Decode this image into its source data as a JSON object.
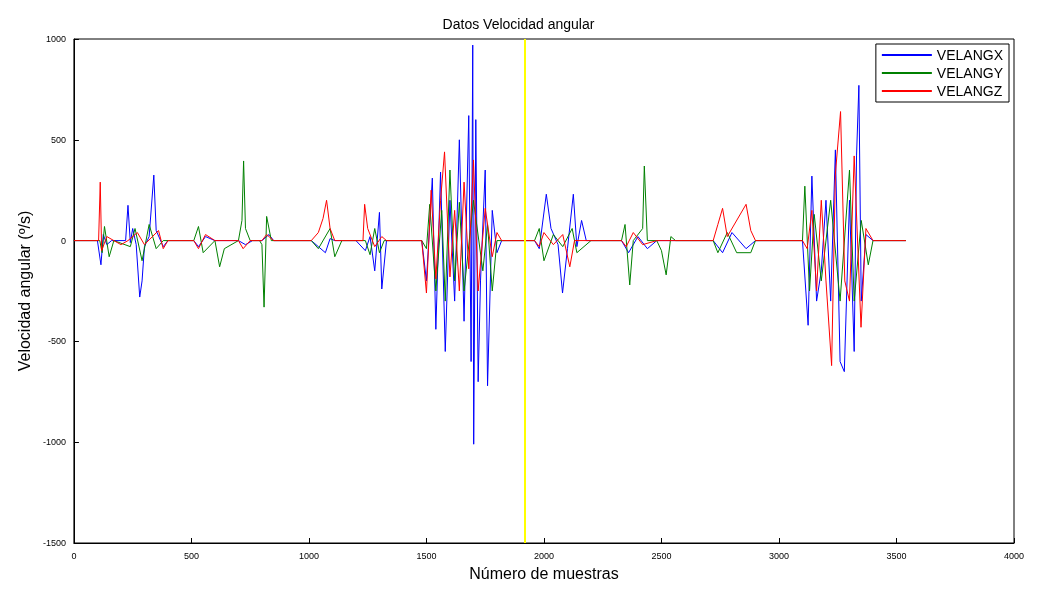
{
  "chart_data": {
    "type": "line",
    "title": "Datos Velocidad angular",
    "xlabel": "Número de muestras",
    "ylabel": "Velocidad angular (º/s)",
    "xlim": [
      0,
      4000
    ],
    "xticks": [
      0,
      500,
      1000,
      1500,
      2000,
      2500,
      3000,
      3500,
      4000
    ],
    "ylim": [
      -1500,
      1000
    ],
    "yticks": [
      -1500,
      -1000,
      -500,
      0,
      500,
      1000
    ],
    "grid": false,
    "legend": "top right",
    "marker": "none",
    "line_style": "solid",
    "ref_lines": [
      {
        "axis": "x",
        "value": 1920,
        "label": null,
        "color": "#ffff00"
      }
    ],
    "series": [
      {
        "name": "VELANGX",
        "color": "#0000ff",
        "x": [
          0,
          100,
          115,
          125,
          140,
          160,
          220,
          230,
          240,
          250,
          265,
          280,
          290,
          300,
          320,
          340,
          350,
          380,
          400,
          510,
          530,
          560,
          600,
          700,
          730,
          760,
          800,
          830,
          850,
          1010,
          1040,
          1070,
          1090,
          1110,
          1200,
          1240,
          1260,
          1280,
          1300,
          1310,
          1330,
          1480,
          1500,
          1525,
          1540,
          1560,
          1580,
          1600,
          1620,
          1640,
          1660,
          1680,
          1690,
          1697,
          1701,
          1710,
          1720,
          1730,
          1750,
          1760,
          1780,
          1800,
          1820,
          1960,
          1980,
          2010,
          2030,
          2060,
          2079,
          2100,
          2125,
          2140,
          2160,
          2180,
          2330,
          2360,
          2400,
          2440,
          2480,
          2720,
          2760,
          2800,
          2860,
          2900,
          3100,
          3124,
          3140,
          3160,
          3180,
          3200,
          3220,
          3240,
          3260,
          3278,
          3300,
          3320,
          3330,
          3340,
          3350,
          3370,
          3400,
          3540
        ],
        "values": [
          0,
          0,
          -120,
          30,
          -20,
          0,
          0,
          175,
          -10,
          60,
          -20,
          -280,
          -200,
          -30,
          20,
          325,
          50,
          -30,
          0,
          0,
          -30,
          20,
          0,
          0,
          -20,
          0,
          0,
          30,
          0,
          0,
          -30,
          -60,
          10,
          0,
          0,
          -50,
          20,
          -150,
          140,
          -240,
          0,
          0,
          -200,
          310,
          -440,
          340,
          -550,
          200,
          -300,
          500,
          -400,
          620,
          -600,
          970,
          -1010,
          600,
          -700,
          -200,
          350,
          -720,
          150,
          -60,
          0,
          0,
          -40,
          230,
          60,
          -20,
          -260,
          -40,
          230,
          -30,
          100,
          0,
          0,
          -60,
          20,
          -40,
          0,
          0,
          -60,
          40,
          -40,
          0,
          0,
          -420,
          320,
          -300,
          -150,
          200,
          -300,
          450,
          -600,
          -650,
          200,
          -550,
          420,
          770,
          -300,
          30,
          0,
          0
        ]
      },
      {
        "name": "VELANGY",
        "color": "#008000",
        "x": [
          0,
          110,
          120,
          130,
          150,
          170,
          240,
          260,
          290,
          320,
          350,
          380,
          510,
          530,
          550,
          600,
          620,
          640,
          700,
          715,
          722,
          730,
          750,
          790,
          800,
          809,
          820,
          840,
          1010,
          1040,
          1090,
          1110,
          1140,
          1240,
          1260,
          1280,
          1300,
          1320,
          1480,
          1500,
          1514,
          1540,
          1565,
          1580,
          1600,
          1620,
          1640,
          1660,
          1700,
          1740,
          1760,
          1780,
          1800,
          1960,
          1980,
          2000,
          2040,
          2080,
          2120,
          2140,
          2200,
          2330,
          2345,
          2365,
          2380,
          2420,
          2427,
          2440,
          2480,
          2500,
          2520,
          2540,
          2560,
          2720,
          2740,
          2780,
          2820,
          2880,
          2900,
          3100,
          3110,
          3130,
          3150,
          3180,
          3220,
          3260,
          3300,
          3320,
          3350,
          3380,
          3400,
          3540
        ],
        "values": [
          0,
          0,
          -60,
          70,
          -80,
          0,
          -30,
          60,
          -100,
          80,
          -40,
          0,
          0,
          70,
          -60,
          0,
          -130,
          -40,
          0,
          100,
          395,
          60,
          0,
          0,
          -20,
          -330,
          120,
          0,
          0,
          -40,
          60,
          -80,
          0,
          0,
          -70,
          60,
          -60,
          0,
          0,
          -40,
          180,
          -250,
          150,
          -300,
          350,
          -200,
          190,
          -250,
          200,
          -150,
          80,
          -250,
          0,
          0,
          60,
          -100,
          30,
          -30,
          60,
          -60,
          0,
          0,
          80,
          -220,
          0,
          60,
          370,
          0,
          0,
          -50,
          -170,
          20,
          0,
          0,
          -60,
          40,
          -60,
          -60,
          0,
          0,
          270,
          -250,
          130,
          -200,
          200,
          -300,
          350,
          -300,
          100,
          -120,
          0,
          0
        ]
      },
      {
        "name": "VELANGZ",
        "color": "#ff0000",
        "x": [
          0,
          105,
          112,
          118,
          140,
          200,
          230,
          270,
          300,
          360,
          380,
          400,
          510,
          530,
          560,
          600,
          700,
          720,
          750,
          800,
          820,
          850,
          1010,
          1040,
          1060,
          1075,
          1090,
          1110,
          1230,
          1237,
          1250,
          1280,
          1310,
          1330,
          1480,
          1500,
          1520,
          1540,
          1560,
          1577,
          1600,
          1620,
          1640,
          1660,
          1680,
          1700,
          1720,
          1750,
          1780,
          1800,
          1820,
          1960,
          1980,
          2000,
          2040,
          2080,
          2110,
          2130,
          2330,
          2350,
          2380,
          2420,
          2480,
          2720,
          2740,
          2760,
          2780,
          2860,
          2880,
          2900,
          3100,
          3120,
          3140,
          3160,
          3180,
          3200,
          3224,
          3240,
          3262,
          3280,
          3300,
          3320,
          3349,
          3370,
          3400,
          3540
        ],
        "values": [
          0,
          0,
          290,
          -50,
          20,
          -20,
          0,
          40,
          -20,
          50,
          -40,
          0,
          0,
          -40,
          30,
          0,
          0,
          -40,
          0,
          0,
          30,
          0,
          0,
          40,
          110,
          200,
          60,
          0,
          0,
          180,
          60,
          -30,
          20,
          0,
          0,
          -260,
          250,
          -190,
          200,
          440,
          -180,
          150,
          -250,
          290,
          -140,
          400,
          -250,
          160,
          -80,
          40,
          0,
          0,
          -30,
          40,
          -20,
          30,
          -130,
          0,
          0,
          -30,
          40,
          -20,
          0,
          0,
          80,
          160,
          20,
          180,
          50,
          0,
          0,
          -40,
          150,
          -250,
          200,
          -200,
          -620,
          330,
          640,
          -200,
          -300,
          420,
          -430,
          60,
          0,
          0
        ]
      }
    ]
  }
}
